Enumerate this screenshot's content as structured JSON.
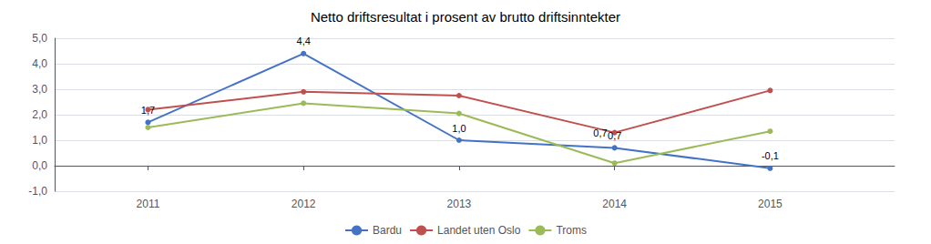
{
  "chart_data": {
    "type": "line",
    "title": "Netto driftsresultat i prosent av brutto driftsinntekter",
    "x": [
      2011,
      2012,
      2013,
      2014,
      2015
    ],
    "series": [
      {
        "name": "Bardu",
        "color": "#4472C4",
        "marker": "circle",
        "values": [
          1.7,
          4.4,
          1.0,
          0.7,
          -0.1
        ],
        "data_labels": true,
        "value_labels": [
          "1,7",
          "4,4",
          "1,0",
          "0,7",
          "-0,1"
        ]
      },
      {
        "name": "Landet uten Oslo",
        "color": "#C0504D",
        "marker": "circle",
        "values": [
          2.2,
          2.9,
          2.75,
          1.3,
          2.95
        ]
      },
      {
        "name": "Troms",
        "color": "#9BBB59",
        "marker": "circle",
        "values": [
          1.5,
          2.45,
          2.05,
          0.1,
          1.35
        ]
      }
    ],
    "annotations": [
      {
        "text": "0,7",
        "x": 2014,
        "y": 1.3
      }
    ],
    "xlim": [
      2010.4,
      2015.8
    ],
    "xticks": [
      2011,
      2012,
      2013,
      2014,
      2015
    ],
    "ylim": [
      -1.0,
      5.0
    ],
    "yticks": [
      {
        "value": -1.0,
        "label": "-1,0"
      },
      {
        "value": 0.0,
        "label": "0,0"
      },
      {
        "value": 1.0,
        "label": "1,0"
      },
      {
        "value": 2.0,
        "label": "2,0"
      },
      {
        "value": 3.0,
        "label": "3,0"
      },
      {
        "value": 4.0,
        "label": "4,0"
      },
      {
        "value": 5.0,
        "label": "5,0"
      }
    ],
    "grid": true,
    "legend": "bottom"
  }
}
